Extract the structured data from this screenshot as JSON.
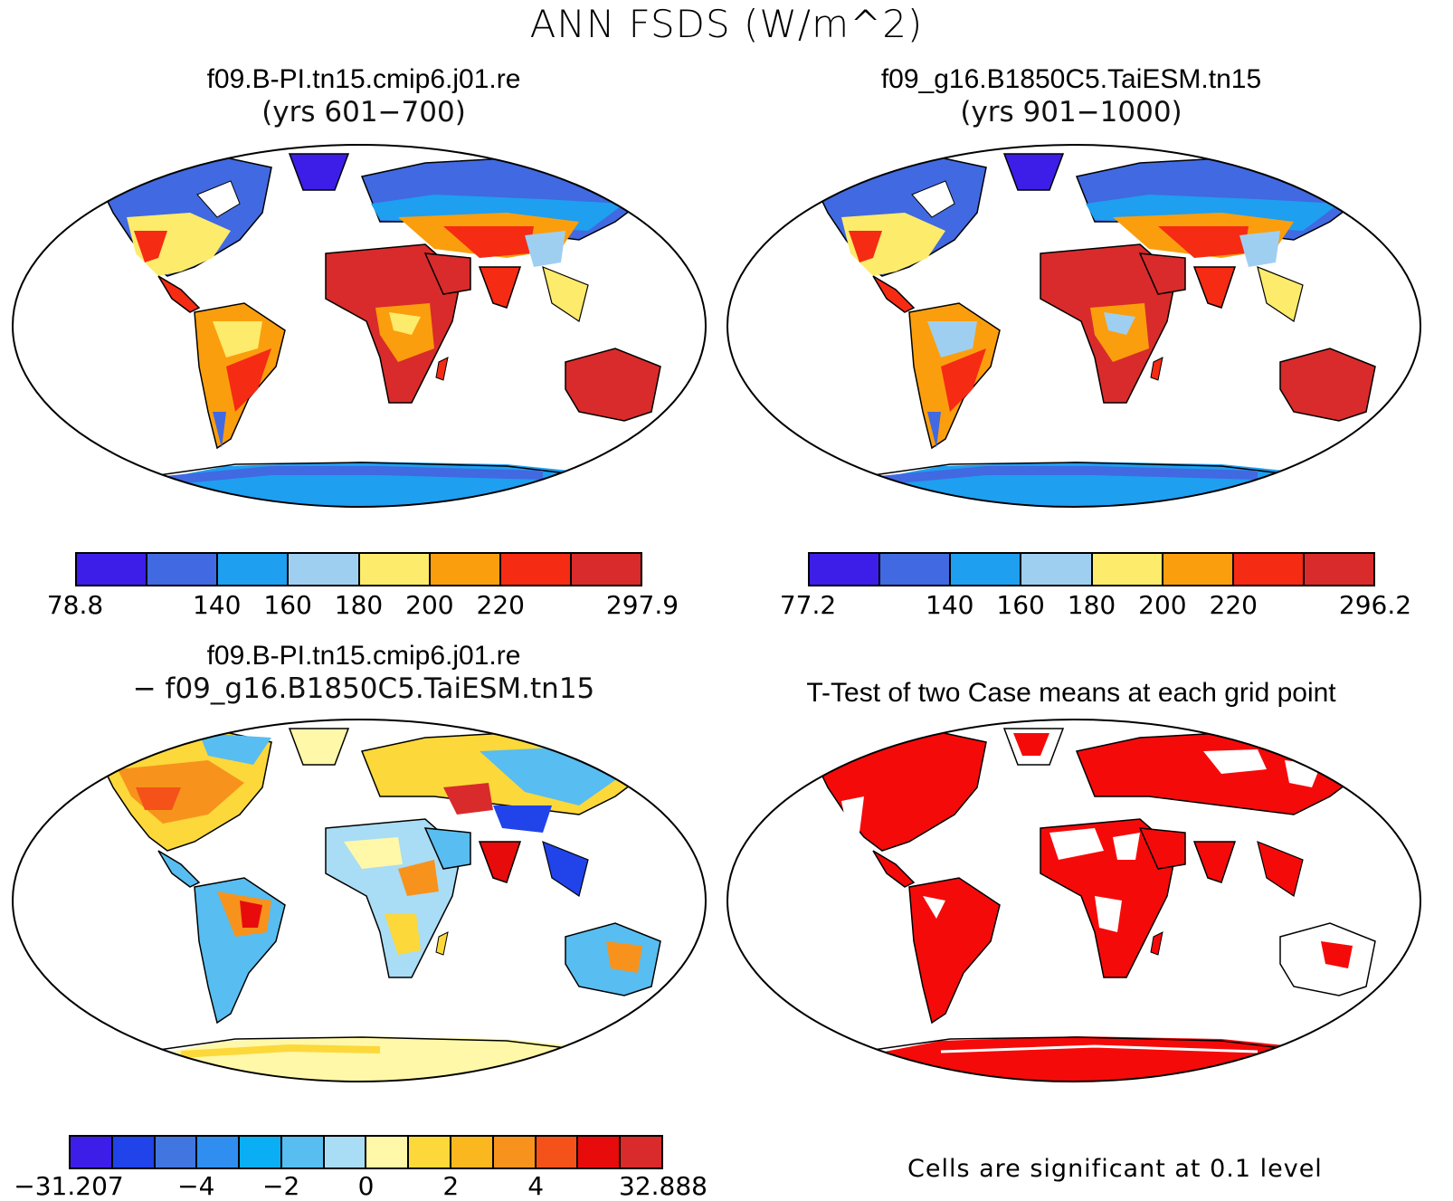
{
  "title": "ANN FSDS (W/m^2)",
  "panels": {
    "p1": {
      "case": "f09.B-PI.tn15.cmip6.j01.re",
      "sub": "(yrs 601−700)"
    },
    "p2": {
      "case": "f09_g16.B1850C5.TaiESM.tn15",
      "sub": "(yrs 901−1000)"
    },
    "p3": {
      "case": "f09.B-PI.tn15.cmip6.j01.re",
      "sub": "− f09_g16.B1850C5.TaiESM.tn15"
    },
    "p4": {
      "case": "T-Test of two Case means at each grid point"
    }
  },
  "colorbars": {
    "cb1": {
      "colors": [
        "#3c1ee8",
        "#4169e1",
        "#1e9ff0",
        "#9fcff0",
        "#fdeb6b",
        "#fb9e0d",
        "#f52b14",
        "#d92b2b"
      ],
      "labels": [
        "78.8",
        "140",
        "160",
        "180",
        "200",
        "220",
        "297.9"
      ]
    },
    "cb2": {
      "colors": [
        "#3c1ee8",
        "#4169e1",
        "#1e9ff0",
        "#9fcff0",
        "#fdeb6b",
        "#fb9e0d",
        "#f52b14",
        "#d92b2b"
      ],
      "labels": [
        "77.2",
        "140",
        "160",
        "180",
        "200",
        "220",
        "296.2"
      ]
    },
    "cb3": {
      "colors": [
        "#3c1ee8",
        "#2043ea",
        "#4176e1",
        "#2f8ef0",
        "#0aaef5",
        "#58bdf0",
        "#a9dcf5",
        "#fff8a8",
        "#fcd83a",
        "#fbb71e",
        "#f7931c",
        "#f5521a",
        "#e80b0b",
        "#d92b2b"
      ],
      "labels": [
        "−31.207",
        "−4",
        "−2",
        "0",
        "2",
        "4",
        "32.888"
      ]
    }
  },
  "significance_note": "Cells are significant at 0.1 level",
  "colors": {
    "significant": "#f50a0a",
    "land_outline": "#000000"
  }
}
